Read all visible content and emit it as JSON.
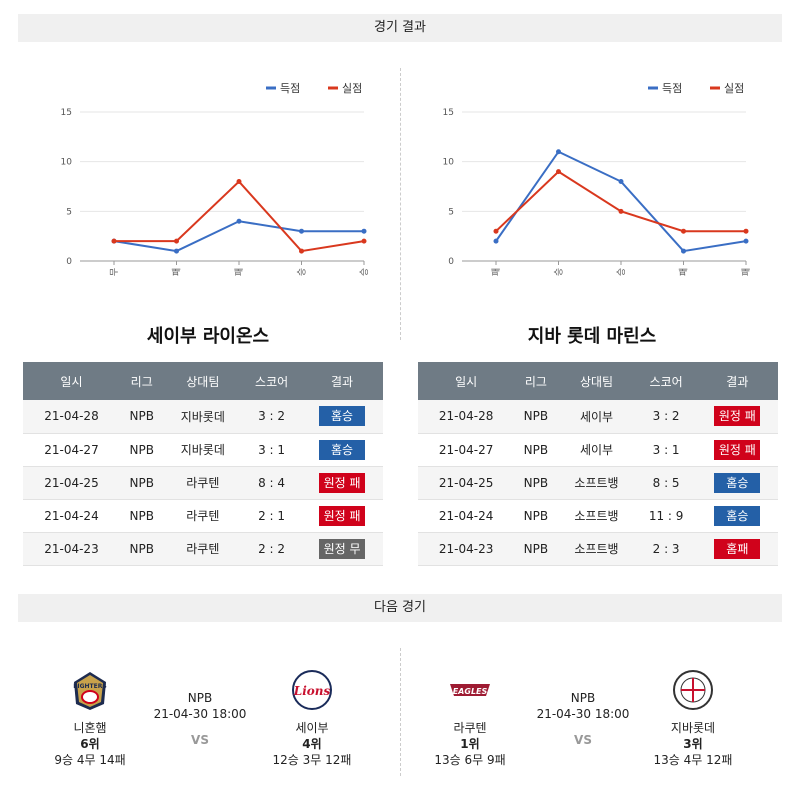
{
  "sections": {
    "results_title": "경기 결과",
    "next_title": "다음 경기"
  },
  "colors": {
    "scored": "#3a6ec4",
    "conceded": "#d9381e",
    "win": "#2460a7",
    "loss": "#d0021b",
    "draw": "#666666",
    "header": "#6f7b85"
  },
  "charts": [
    {
      "legend": [
        "득점",
        "실점"
      ],
      "y_ticks": [
        "15",
        "10",
        "5",
        "0"
      ],
      "x_labels": [
        "무",
        "패",
        "패",
        "승",
        "승"
      ]
    },
    {
      "legend": [
        "득점",
        "실점"
      ],
      "y_ticks": [
        "15",
        "10",
        "5",
        "0"
      ],
      "x_labels": [
        "패",
        "승",
        "승",
        "패",
        "패"
      ]
    }
  ],
  "chart_data": [
    {
      "type": "line",
      "categories": [
        "무",
        "패",
        "패",
        "승",
        "승"
      ],
      "ylim": [
        0,
        15
      ],
      "series": [
        {
          "name": "득점",
          "values": [
            2,
            1,
            4,
            3,
            3
          ]
        },
        {
          "name": "실점",
          "values": [
            2,
            2,
            8,
            1,
            2
          ]
        }
      ]
    },
    {
      "type": "line",
      "categories": [
        "패",
        "승",
        "승",
        "패",
        "패"
      ],
      "ylim": [
        0,
        15
      ],
      "series": [
        {
          "name": "득점",
          "values": [
            2,
            11,
            8,
            1,
            2
          ]
        },
        {
          "name": "실점",
          "values": [
            3,
            9,
            5,
            3,
            3
          ]
        }
      ]
    }
  ],
  "teams": [
    {
      "name": "세이부 라이온스",
      "headers": [
        "일시",
        "리그",
        "상대팀",
        "스코어",
        "결과"
      ],
      "rows": [
        {
          "date": "21-04-28",
          "league": "NPB",
          "opponent": "지바롯데",
          "score": "3 : 2",
          "result": "홈승",
          "kind": "win"
        },
        {
          "date": "21-04-27",
          "league": "NPB",
          "opponent": "지바롯데",
          "score": "3 : 1",
          "result": "홈승",
          "kind": "win"
        },
        {
          "date": "21-04-25",
          "league": "NPB",
          "opponent": "라쿠텐",
          "score": "8 : 4",
          "result": "원정 패",
          "kind": "loss"
        },
        {
          "date": "21-04-24",
          "league": "NPB",
          "opponent": "라쿠텐",
          "score": "2 : 1",
          "result": "원정 패",
          "kind": "loss"
        },
        {
          "date": "21-04-23",
          "league": "NPB",
          "opponent": "라쿠텐",
          "score": "2 : 2",
          "result": "원정 무",
          "kind": "draw"
        }
      ]
    },
    {
      "name": "지바 롯데 마린스",
      "headers": [
        "일시",
        "리그",
        "상대팀",
        "스코어",
        "결과"
      ],
      "rows": [
        {
          "date": "21-04-28",
          "league": "NPB",
          "opponent": "세이부",
          "score": "3 : 2",
          "result": "원정 패",
          "kind": "loss"
        },
        {
          "date": "21-04-27",
          "league": "NPB",
          "opponent": "세이부",
          "score": "3 : 1",
          "result": "원정 패",
          "kind": "loss"
        },
        {
          "date": "21-04-25",
          "league": "NPB",
          "opponent": "소프트뱅",
          "score": "8 : 5",
          "result": "홈승",
          "kind": "win"
        },
        {
          "date": "21-04-24",
          "league": "NPB",
          "opponent": "소프트뱅",
          "score": "11 : 9",
          "result": "홈승",
          "kind": "win"
        },
        {
          "date": "21-04-23",
          "league": "NPB",
          "opponent": "소프트뱅",
          "score": "2 : 3",
          "result": "홈패",
          "kind": "loss"
        }
      ]
    }
  ],
  "next_games": [
    {
      "league": "NPB",
      "datetime": "21-04-30 18:00",
      "vs": "VS",
      "home": {
        "name": "니혼햄",
        "rank": "6위",
        "record": "9승 4무 14패",
        "logo_icon": "fighters-logo-icon"
      },
      "away": {
        "name": "세이부",
        "rank": "4위",
        "record": "12승 3무 12패",
        "logo_icon": "lions-logo-icon"
      }
    },
    {
      "league": "NPB",
      "datetime": "21-04-30 18:00",
      "vs": "VS",
      "home": {
        "name": "라쿠텐",
        "rank": "1위",
        "record": "13승 6무 9패",
        "logo_icon": "eagles-logo-icon"
      },
      "away": {
        "name": "지바롯데",
        "rank": "3위",
        "record": "13승 4무 12패",
        "logo_icon": "marines-logo-icon"
      }
    }
  ]
}
